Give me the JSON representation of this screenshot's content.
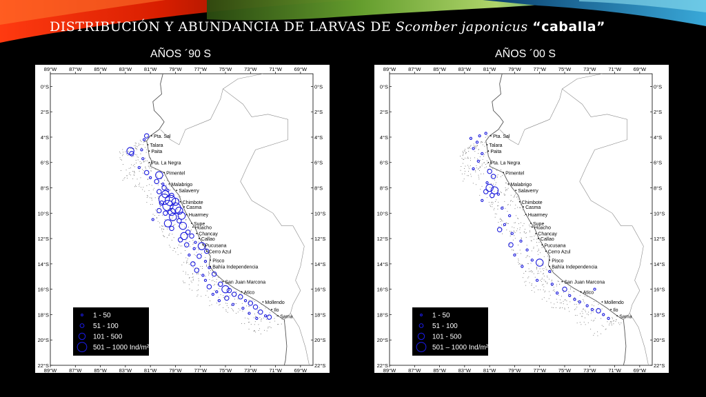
{
  "title": {
    "prefix": "DISTRIBUCIÓN Y ABUNDANCIA DE LARVAS DE ",
    "species": "Scomber japonicus",
    "common_name": "“caballa”"
  },
  "panels": [
    {
      "label": "AÑOS ´90 S"
    },
    {
      "label": "AÑOS ´00 S"
    }
  ],
  "axes": {
    "lon_labels": [
      "89°W",
      "87°W",
      "85°W",
      "83°W",
      "81°W",
      "79°W",
      "77°W",
      "75°W",
      "73°W",
      "71°W",
      "69°W"
    ],
    "lat_labels": [
      "0°S",
      "2°S",
      "4°S",
      "6°S",
      "8°S",
      "10°S",
      "12°S",
      "14°S",
      "16°S",
      "18°S",
      "20°S",
      "22°S"
    ]
  },
  "places": [
    {
      "name": "Pta. Sal",
      "lon": -80.9,
      "lat": -3.9
    },
    {
      "name": "Talara",
      "lon": -81.2,
      "lat": -4.6
    },
    {
      "name": "Paita",
      "lon": -81.1,
      "lat": -5.1
    },
    {
      "name": "Pta. La Negra",
      "lon": -81.1,
      "lat": -6.0
    },
    {
      "name": "Pimentel",
      "lon": -79.9,
      "lat": -6.8
    },
    {
      "name": "Malabrigo",
      "lon": -79.5,
      "lat": -7.7
    },
    {
      "name": "Salaverry",
      "lon": -78.9,
      "lat": -8.2
    },
    {
      "name": "Chimbote",
      "lon": -78.6,
      "lat": -9.1
    },
    {
      "name": "Casma",
      "lon": -78.3,
      "lat": -9.5
    },
    {
      "name": "Huarmey",
      "lon": -78.1,
      "lat": -10.1
    },
    {
      "name": "Supe",
      "lon": -77.7,
      "lat": -10.8
    },
    {
      "name": "Huacho",
      "lon": -77.6,
      "lat": -11.1
    },
    {
      "name": "Chancay",
      "lon": -77.3,
      "lat": -11.6
    },
    {
      "name": "Callao",
      "lon": -77.1,
      "lat": -12.0
    },
    {
      "name": "Pucusana",
      "lon": -76.8,
      "lat": -12.5
    },
    {
      "name": "Cerro Azul",
      "lon": -76.5,
      "lat": -13.0
    },
    {
      "name": "Pisco",
      "lon": -76.2,
      "lat": -13.7
    },
    {
      "name": "Bahía Independencia",
      "lon": -76.2,
      "lat": -14.2
    },
    {
      "name": "San Juan Marcona",
      "lon": -75.2,
      "lat": -15.4
    },
    {
      "name": "Atico",
      "lon": -73.7,
      "lat": -16.2
    },
    {
      "name": "Mollendo",
      "lon": -72.0,
      "lat": -17.0
    },
    {
      "name": "Ilo",
      "lon": -71.3,
      "lat": -17.6
    },
    {
      "name": "Sama",
      "lon": -70.8,
      "lat": -18.1
    }
  ],
  "legend": {
    "items": [
      "1 - 50",
      "51 - 100",
      "101 - 500",
      "501 – 1000 Ind/m²"
    ]
  },
  "style": {
    "marker_color": "#1a1adc",
    "legend_bg": "#000000",
    "coast_color": "#000000",
    "border_color": "#888888"
  },
  "map_data": {
    "lon_range": [
      -89,
      -68
    ],
    "lat_range": [
      -22,
      1
    ],
    "size_classes": [
      "1 - 50",
      "51 - 100",
      "101 - 500",
      "501 – 1000 Ind/m²"
    ],
    "panels": [
      {
        "label": "AÑOS ´90 S",
        "points": [
          [
            -81.3,
            -3.9,
            1
          ],
          [
            -81.5,
            -4.2,
            0
          ],
          [
            -81.7,
            -5.0,
            0
          ],
          [
            -82.6,
            -5.1,
            2
          ],
          [
            -82.5,
            -5.3,
            1
          ],
          [
            -81.6,
            -5.7,
            0
          ],
          [
            -81.9,
            -6.4,
            0
          ],
          [
            -81.3,
            -6.8,
            1
          ],
          [
            -80.3,
            -7.0,
            2
          ],
          [
            -81.0,
            -7.2,
            0
          ],
          [
            -80.5,
            -7.5,
            1
          ],
          [
            -80.0,
            -7.7,
            0
          ],
          [
            -79.9,
            -8.0,
            1
          ],
          [
            -79.6,
            -8.2,
            0
          ],
          [
            -80.3,
            -8.3,
            1
          ],
          [
            -79.8,
            -8.5,
            2
          ],
          [
            -79.3,
            -8.6,
            1
          ],
          [
            -79.9,
            -8.9,
            3
          ],
          [
            -79.4,
            -9.0,
            3
          ],
          [
            -79.0,
            -9.1,
            2
          ],
          [
            -80.1,
            -9.2,
            1
          ],
          [
            -79.6,
            -9.4,
            3
          ],
          [
            -79.0,
            -9.6,
            3
          ],
          [
            -78.7,
            -9.8,
            2
          ],
          [
            -79.3,
            -9.9,
            2
          ],
          [
            -80.3,
            -9.8,
            1
          ],
          [
            -79.8,
            -10.0,
            1
          ],
          [
            -78.5,
            -10.2,
            2
          ],
          [
            -79.2,
            -10.3,
            2
          ],
          [
            -80.8,
            -10.5,
            0
          ],
          [
            -79.6,
            -10.8,
            2
          ],
          [
            -78.7,
            -10.6,
            1
          ],
          [
            -78.4,
            -11.0,
            2
          ],
          [
            -79.3,
            -11.2,
            1
          ],
          [
            -78.0,
            -11.5,
            1
          ],
          [
            -78.3,
            -11.8,
            2
          ],
          [
            -77.7,
            -11.8,
            1
          ],
          [
            -78.6,
            -12.1,
            1
          ],
          [
            -77.4,
            -12.3,
            0
          ],
          [
            -76.9,
            -12.6,
            2
          ],
          [
            -78.1,
            -12.5,
            1
          ],
          [
            -77.5,
            -12.8,
            0
          ],
          [
            -76.5,
            -13.0,
            1
          ],
          [
            -77.9,
            -13.3,
            0
          ],
          [
            -77.1,
            -13.4,
            1
          ],
          [
            -76.6,
            -13.8,
            0
          ],
          [
            -77.6,
            -14.0,
            1
          ],
          [
            -76.3,
            -14.3,
            0
          ],
          [
            -77.3,
            -14.5,
            1
          ],
          [
            -76.8,
            -14.9,
            0
          ],
          [
            -75.9,
            -14.8,
            1
          ],
          [
            -76.6,
            -15.3,
            0
          ],
          [
            -75.4,
            -15.6,
            1
          ],
          [
            -76.3,
            -15.8,
            1
          ],
          [
            -75.0,
            -16.0,
            2
          ],
          [
            -75.7,
            -16.2,
            0
          ],
          [
            -74.7,
            -16.1,
            1
          ],
          [
            -74.3,
            -16.4,
            1
          ],
          [
            -76.0,
            -16.4,
            0
          ],
          [
            -73.8,
            -16.6,
            1
          ],
          [
            -74.9,
            -16.7,
            1
          ],
          [
            -73.4,
            -16.9,
            0
          ],
          [
            -75.5,
            -16.9,
            0
          ],
          [
            -73.0,
            -17.1,
            1
          ],
          [
            -74.4,
            -17.2,
            0
          ],
          [
            -72.6,
            -17.4,
            1
          ],
          [
            -73.6,
            -17.5,
            0
          ],
          [
            -72.2,
            -17.8,
            1
          ],
          [
            -73.1,
            -17.9,
            0
          ],
          [
            -71.8,
            -18.1,
            0
          ],
          [
            -72.5,
            -18.3,
            0
          ],
          [
            -71.5,
            -18.2,
            1
          ]
        ]
      },
      {
        "label": "AÑOS ´00 S",
        "points": [
          [
            -81.3,
            -3.7,
            0
          ],
          [
            -81.8,
            -3.9,
            0
          ],
          [
            -82.5,
            -4.1,
            0
          ],
          [
            -82.0,
            -4.4,
            0
          ],
          [
            -82.3,
            -4.9,
            0
          ],
          [
            -81.6,
            -5.3,
            0
          ],
          [
            -81.9,
            -5.9,
            0
          ],
          [
            -82.3,
            -6.5,
            0
          ],
          [
            -81.0,
            -6.7,
            1
          ],
          [
            -80.7,
            -7.1,
            1
          ],
          [
            -81.2,
            -7.6,
            0
          ],
          [
            -81.0,
            -8.0,
            2
          ],
          [
            -80.6,
            -8.2,
            2
          ],
          [
            -81.3,
            -8.3,
            1
          ],
          [
            -80.8,
            -8.6,
            1
          ],
          [
            -80.3,
            -8.5,
            0
          ],
          [
            -81.6,
            -9.0,
            0
          ],
          [
            -80.0,
            -9.6,
            0
          ],
          [
            -79.4,
            -10.2,
            0
          ],
          [
            -79.8,
            -10.9,
            0
          ],
          [
            -80.2,
            -11.3,
            1
          ],
          [
            -79.2,
            -11.6,
            0
          ],
          [
            -78.5,
            -12.2,
            0
          ],
          [
            -79.3,
            -12.5,
            1
          ],
          [
            -78.0,
            -12.9,
            0
          ],
          [
            -79.0,
            -13.3,
            0
          ],
          [
            -77.6,
            -13.7,
            0
          ],
          [
            -77.0,
            -13.9,
            2
          ],
          [
            -78.4,
            -14.2,
            0
          ],
          [
            -76.2,
            -14.6,
            0
          ],
          [
            -77.2,
            -15.3,
            0
          ],
          [
            -76.0,
            -15.6,
            0
          ],
          [
            -75.0,
            -16.0,
            1
          ],
          [
            -75.6,
            -16.3,
            0
          ],
          [
            -74.6,
            -16.5,
            0
          ],
          [
            -74.2,
            -16.8,
            0
          ],
          [
            -73.8,
            -17.0,
            0
          ],
          [
            -73.2,
            -17.3,
            0
          ],
          [
            -72.8,
            -17.6,
            0
          ],
          [
            -72.3,
            -17.7,
            1
          ],
          [
            -71.9,
            -18.0,
            0
          ],
          [
            -71.5,
            -18.3,
            0
          ],
          [
            -72.6,
            -16.0,
            0
          ]
        ]
      }
    ]
  }
}
